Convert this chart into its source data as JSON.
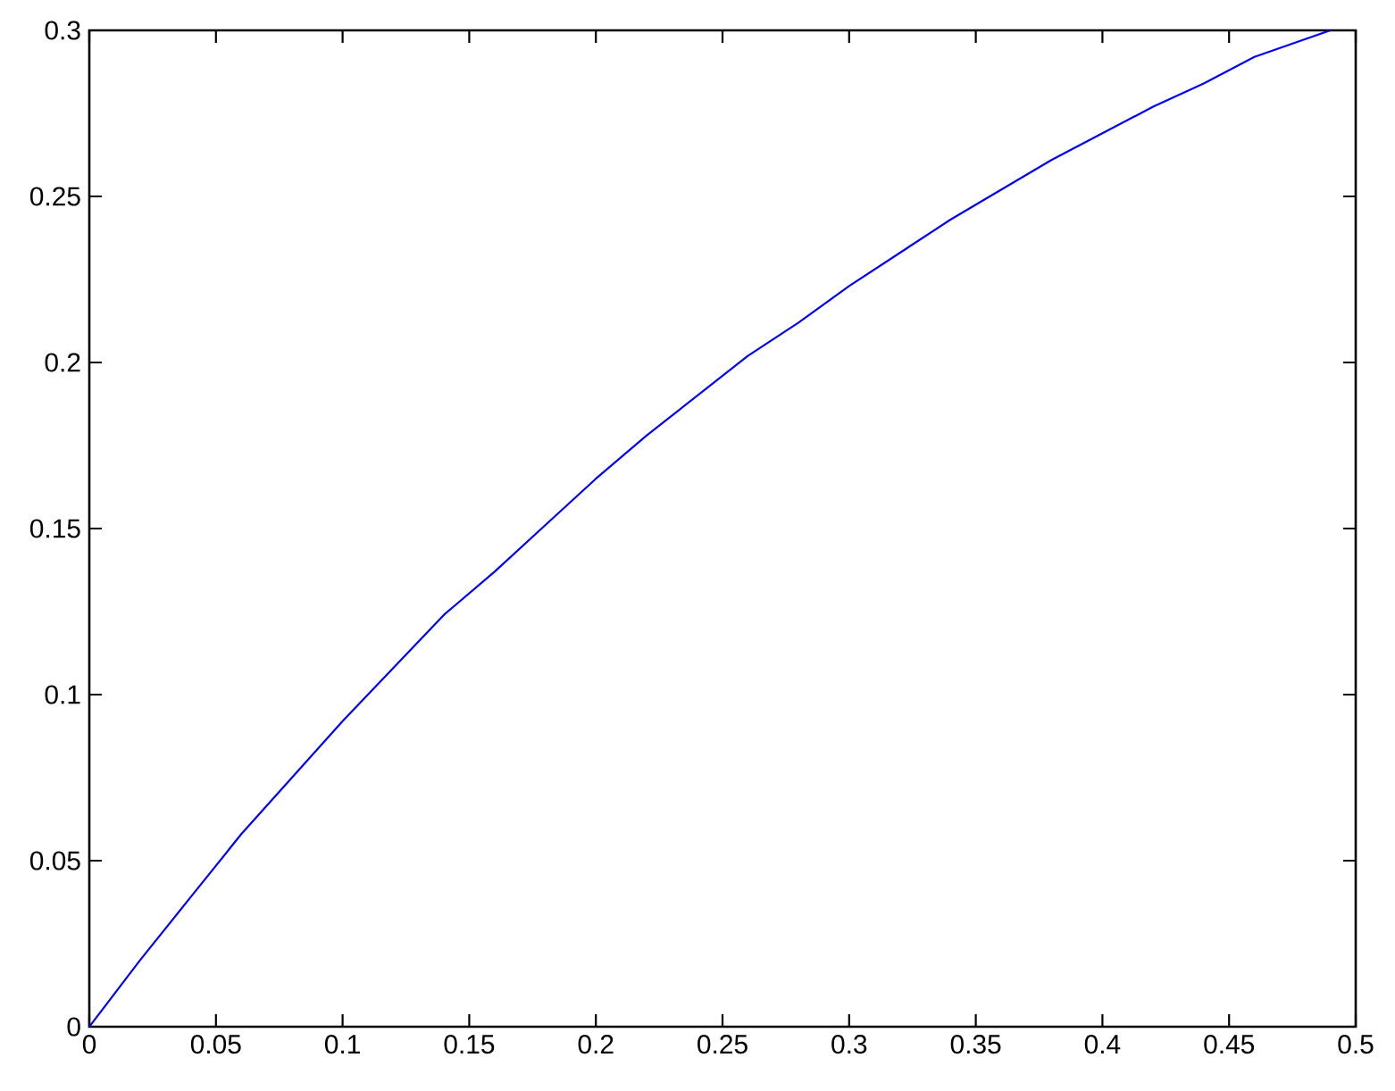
{
  "chart_data": {
    "type": "line",
    "x": [
      0,
      0.02,
      0.04,
      0.06,
      0.08,
      0.1,
      0.12,
      0.14,
      0.16,
      0.18,
      0.2,
      0.22,
      0.24,
      0.26,
      0.28,
      0.3,
      0.32,
      0.34,
      0.36,
      0.38,
      0.4,
      0.42,
      0.44,
      0.46,
      0.49
    ],
    "values": [
      0,
      0.02,
      0.039,
      0.058,
      0.075,
      0.092,
      0.108,
      0.124,
      0.137,
      0.151,
      0.165,
      0.178,
      0.19,
      0.202,
      0.212,
      0.223,
      0.233,
      0.243,
      0.252,
      0.261,
      0.269,
      0.277,
      0.284,
      0.292,
      0.3
    ],
    "color": "#0000ff",
    "marker": "none",
    "line_style": "solid",
    "xlim": [
      0,
      0.5
    ],
    "ylim": [
      0,
      0.3
    ],
    "xticks": [
      0,
      0.05,
      0.1,
      0.15,
      0.2,
      0.25,
      0.3,
      0.35,
      0.4,
      0.45,
      0.5
    ],
    "yticks": [
      0,
      0.05,
      0.1,
      0.15,
      0.2,
      0.25,
      0.3
    ]
  }
}
